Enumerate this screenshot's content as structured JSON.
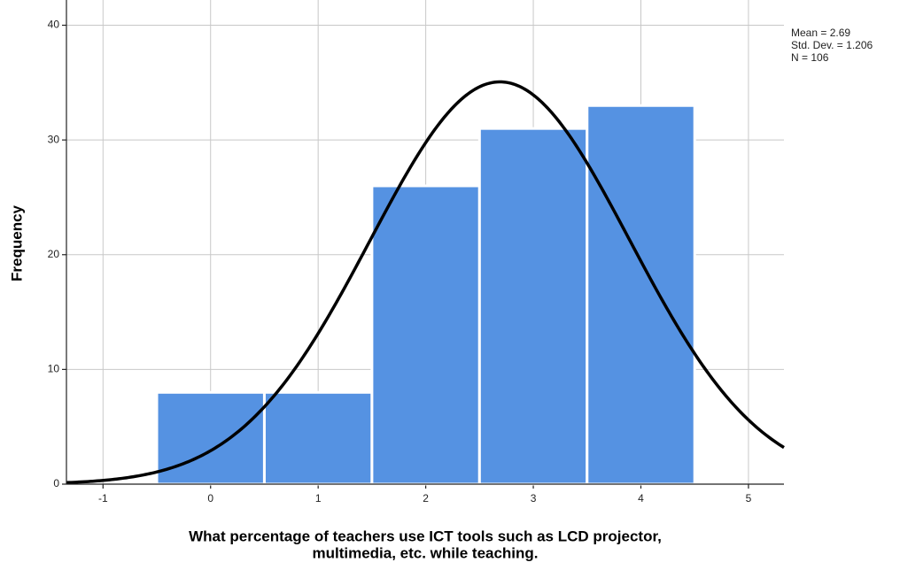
{
  "chart_data": {
    "type": "histogram",
    "xlabel": [
      "What percentage of teachers use ICT tools such as LCD projector,",
      "multimedia, etc. while teaching."
    ],
    "ylabel": "Frequency",
    "bins": [
      -0.5,
      0.5,
      1.5,
      2.5,
      3.5,
      4.5
    ],
    "values": [
      8,
      8,
      26,
      31,
      33
    ],
    "color": "#5592e2",
    "xlim": [
      -1.34,
      5.33
    ],
    "xticks": [
      -1,
      0,
      1,
      2,
      3,
      4,
      5
    ],
    "ylim": [
      0,
      42.2
    ],
    "yticks": [
      0,
      10,
      20,
      30,
      40
    ],
    "grid": true,
    "normal": {
      "mean": {
        "value": 2.69,
        "label": "Mean = 2.69"
      },
      "sd": {
        "value": 1.206,
        "label": "Std. Dev. = 1.206"
      },
      "n": {
        "value": 106,
        "label": "N = 106"
      },
      "color": "#000000"
    }
  }
}
